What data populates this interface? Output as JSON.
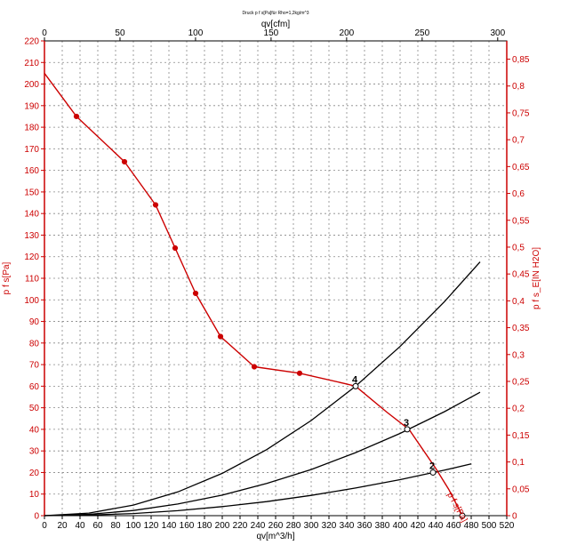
{
  "chart_data": {
    "type": "line",
    "title": "Druck p f s[Pa]für Rho=1,2kg/m^3",
    "xlabel": "qv[m^3/h]",
    "x2label": "qv[cfm]",
    "ylabel": "p f s[Pa]",
    "y2label": "p f s_E[IN H2O]",
    "xlim": [
      0,
      520
    ],
    "ylim": [
      0,
      220
    ],
    "x2lim": [
      0,
      306
    ],
    "y2lim": [
      0,
      0.884
    ],
    "grid": true,
    "x_ticks": [
      "0",
      "20",
      "40",
      "60",
      "80",
      "100",
      "120",
      "140",
      "160",
      "180",
      "200",
      "220",
      "240",
      "260",
      "280",
      "300",
      "320",
      "340",
      "360",
      "380",
      "400",
      "420",
      "440",
      "460",
      "480",
      "500",
      "520"
    ],
    "y_ticks": [
      "0",
      "10",
      "20",
      "30",
      "40",
      "50",
      "60",
      "70",
      "80",
      "90",
      "100",
      "110",
      "120",
      "130",
      "140",
      "150",
      "160",
      "170",
      "180",
      "190",
      "200",
      "210",
      "220"
    ],
    "x2_ticks": [
      {
        "value": 0,
        "label": "0"
      },
      {
        "value": 50,
        "label": "50"
      },
      {
        "value": 100,
        "label": "100"
      },
      {
        "value": 150,
        "label": "150"
      },
      {
        "value": 200,
        "label": "200"
      },
      {
        "value": 250,
        "label": "250"
      },
      {
        "value": 300,
        "label": "300"
      }
    ],
    "y2_ticks": [
      {
        "value": 0,
        "label": "0"
      },
      {
        "value": 0.05,
        "label": "0,05"
      },
      {
        "value": 0.1,
        "label": "0,1"
      },
      {
        "value": 0.15,
        "label": "0,15"
      },
      {
        "value": 0.2,
        "label": "0,2"
      },
      {
        "value": 0.25,
        "label": "0,25"
      },
      {
        "value": 0.3,
        "label": "0,3"
      },
      {
        "value": 0.35,
        "label": "0,35"
      },
      {
        "value": 0.4,
        "label": "0,4"
      },
      {
        "value": 0.45,
        "label": "0,45"
      },
      {
        "value": 0.5,
        "label": "0,5"
      },
      {
        "value": 0.55,
        "label": "0,55"
      },
      {
        "value": 0.6,
        "label": "0,6"
      },
      {
        "value": 0.65,
        "label": "0,65"
      },
      {
        "value": 0.7,
        "label": "0,7"
      },
      {
        "value": 0.75,
        "label": "0,75"
      },
      {
        "value": 0.8,
        "label": "0,8"
      },
      {
        "value": 0.85,
        "label": "0,85"
      }
    ],
    "fan_curve": {
      "label": "p f s[Pa]",
      "color": "#cc0000",
      "x": [
        0,
        36,
        90,
        125,
        147,
        170,
        198,
        236,
        287,
        340,
        350,
        385,
        410,
        440,
        455,
        470
      ],
      "y": [
        205,
        185,
        164,
        144,
        124,
        103,
        83,
        69,
        66,
        61,
        60,
        48,
        40,
        22,
        12,
        0
      ],
      "markers": [
        {
          "x": 36,
          "y": 185
        },
        {
          "x": 90,
          "y": 164
        },
        {
          "x": 125,
          "y": 144
        },
        {
          "x": 147,
          "y": 124
        },
        {
          "x": 170,
          "y": 103
        },
        {
          "x": 198,
          "y": 83
        },
        {
          "x": 236,
          "y": 69
        },
        {
          "x": 287,
          "y": 66
        }
      ]
    },
    "system_curves": [
      {
        "color": "#000000",
        "x": [
          0,
          50,
          100,
          150,
          200,
          250,
          300,
          350,
          400,
          450,
          490
        ],
        "y": [
          0,
          1.2,
          4.9,
          11.0,
          19.6,
          30.6,
          44.1,
          60.0,
          78.4,
          99.2,
          117.6
        ]
      },
      {
        "color": "#000000",
        "x": [
          0,
          50,
          100,
          150,
          200,
          250,
          300,
          350,
          400,
          450,
          490
        ],
        "y": [
          0,
          0.6,
          2.4,
          5.4,
          9.5,
          14.9,
          21.4,
          29.2,
          38.1,
          48.2,
          57.2
        ]
      },
      {
        "color": "#000000",
        "x": [
          0,
          50,
          100,
          150,
          200,
          250,
          300,
          350,
          400,
          450,
          480
        ],
        "y": [
          0,
          0.3,
          1.0,
          2.3,
          4.2,
          6.5,
          9.4,
          12.8,
          16.7,
          21.1,
          24.0
        ]
      }
    ],
    "operating_points": [
      {
        "label": "4",
        "x": 350,
        "y": 60
      },
      {
        "label": "3",
        "x": 408,
        "y": 40
      },
      {
        "label": "2",
        "x": 437,
        "y": 20
      },
      {
        "label": "",
        "x": 470,
        "y": 0
      }
    ],
    "curve_annotation": "p f s[Pa]"
  }
}
